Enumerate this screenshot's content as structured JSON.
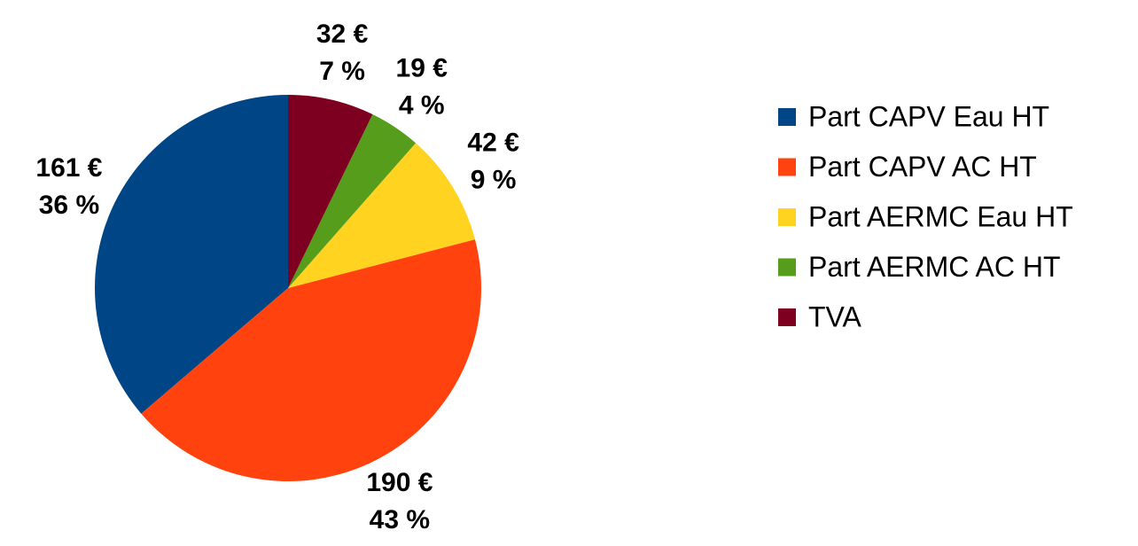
{
  "chart_data": {
    "type": "pie",
    "categories": [
      "Part CAPV Eau HT",
      "Part CAPV AC HT",
      "Part AERMC Eau HT",
      "Part AERMC AC HT",
      "TVA"
    ],
    "values": [
      161,
      190,
      42,
      19,
      32
    ],
    "value_labels": [
      "161 €",
      "190 €",
      "42 €",
      "19 €",
      "32 €"
    ],
    "percent_labels": [
      "36 %",
      "43 %",
      "9 %",
      "4 %",
      "7 %"
    ],
    "colors": [
      "#004586",
      "#ff420e",
      "#ffd320",
      "#579d1c",
      "#7e0021"
    ],
    "direction": "counterclockwise",
    "legend": "right"
  }
}
